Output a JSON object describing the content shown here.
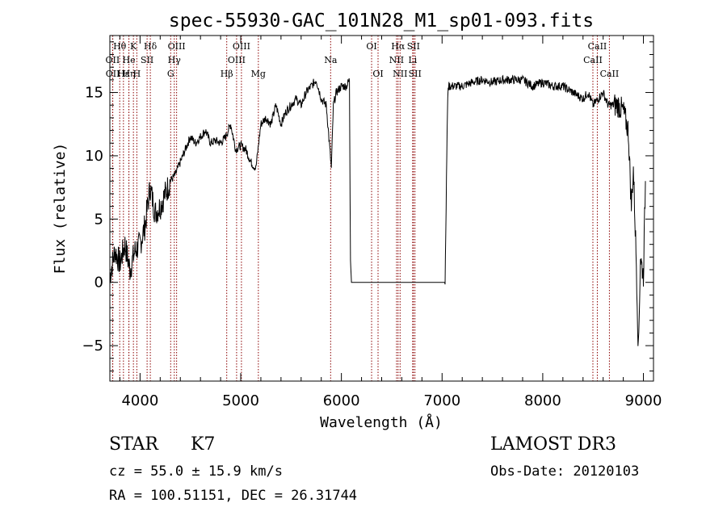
{
  "chart_data": {
    "type": "line",
    "title": "spec-55930-GAC_101N28_M1_sp01-093.fits",
    "xlabel": "Wavelength (Å)",
    "ylabel": "Flux (relative)",
    "xlim": [
      3700,
      9100
    ],
    "ylim": [
      -7.8,
      19.5
    ],
    "xticks": [
      4000,
      5000,
      6000,
      7000,
      8000,
      9000
    ],
    "yticks": [
      -5,
      0,
      5,
      10,
      15
    ],
    "series": [
      {
        "x": [
          3700,
          3750,
          3800,
          3850,
          3900,
          3950,
          4000,
          4050,
          4100,
          4150,
          4200,
          4250,
          4300,
          4350,
          4400,
          4450,
          4500,
          4550,
          4600,
          4650,
          4700,
          4750,
          4800,
          4850,
          4900,
          4950,
          5000,
          5050,
          5100,
          5150,
          5200,
          5250,
          5300,
          5350,
          5400,
          5450,
          5500,
          5550,
          5600,
          5650,
          5700,
          5750,
          5800,
          5850,
          5880,
          5900,
          5920,
          5950,
          6000,
          6050,
          6080,
          6090,
          6100,
          6150,
          6200,
          6300,
          6400,
          6500,
          6600,
          6700,
          6800,
          6900,
          7000,
          7030,
          7040,
          7050,
          7060,
          7100,
          7200,
          7300,
          7400,
          7500,
          7600,
          7700,
          7800,
          7900,
          8000,
          8100,
          8200,
          8300,
          8400,
          8450,
          8500,
          8550,
          8600,
          8650,
          8700,
          8750,
          8800,
          8850,
          8880,
          8900,
          8930,
          8950,
          8970,
          9000,
          9020
        ],
        "y": [
          0.5,
          2.5,
          1.5,
          3.0,
          1.0,
          2.5,
          3.0,
          4.5,
          7.5,
          5.5,
          6.0,
          7.0,
          8.0,
          8.5,
          9.5,
          10.5,
          11.5,
          11.0,
          11.5,
          12.0,
          11.0,
          11.2,
          11.0,
          11.5,
          12.5,
          10.5,
          10.8,
          10.5,
          9.5,
          9.0,
          12.5,
          13.0,
          12.5,
          14.0,
          12.5,
          13.5,
          14.0,
          14.5,
          14.0,
          15.0,
          15.5,
          16.0,
          14.5,
          14.0,
          11.0,
          9.0,
          14.0,
          15.0,
          15.5,
          15.5,
          16.0,
          2.0,
          0.0,
          0.0,
          0.0,
          0.0,
          0.0,
          0.0,
          0.0,
          0.0,
          0.0,
          0.0,
          0.0,
          0.0,
          6.0,
          12.0,
          15.5,
          15.5,
          15.5,
          15.8,
          16.0,
          15.8,
          16.0,
          16.0,
          16.0,
          15.5,
          15.8,
          15.5,
          15.5,
          15.0,
          14.5,
          15.0,
          14.0,
          14.5,
          15.0,
          14.0,
          14.0,
          14.0,
          13.5,
          12.0,
          6.0,
          9.0,
          1.5,
          -5.5,
          2.0,
          0.5,
          8.0
        ]
      }
    ],
    "lines": [
      {
        "name": "Hθ",
        "x": 3798,
        "row": 1
      },
      {
        "name": "K",
        "x": 3934,
        "row": 1
      },
      {
        "name": "Hδ",
        "x": 4102,
        "row": 1
      },
      {
        "name": "OIII",
        "x": 4363,
        "row": 1
      },
      {
        "name": "OIII",
        "x": 5007,
        "row": 1
      },
      {
        "name": "OI",
        "x": 6300,
        "row": 1
      },
      {
        "name": "Hα",
        "x": 6563,
        "row": 1
      },
      {
        "name": "SII",
        "x": 6716,
        "row": 1
      },
      {
        "name": "CaII",
        "x": 8542,
        "row": 1
      },
      {
        "name": "OII",
        "x": 3727,
        "row": 2
      },
      {
        "name": "He",
        "x": 3889,
        "row": 2
      },
      {
        "name": "SII",
        "x": 4070,
        "row": 2
      },
      {
        "name": "Hγ",
        "x": 4340,
        "row": 2
      },
      {
        "name": "OIII",
        "x": 4959,
        "row": 2
      },
      {
        "name": "Na",
        "x": 5893,
        "row": 2
      },
      {
        "name": "NII",
        "x": 6548,
        "row": 2
      },
      {
        "name": "Li",
        "x": 6708,
        "row": 2
      },
      {
        "name": "CaII",
        "x": 8498,
        "row": 2
      },
      {
        "name": "OII",
        "x": 3729,
        "row": 3
      },
      {
        "name": "Hε",
        "x": 3835,
        "row": 3
      },
      {
        "name": "Hη",
        "x": 3889,
        "row": 3
      },
      {
        "name": "H",
        "x": 3968,
        "row": 3
      },
      {
        "name": "G",
        "x": 4304,
        "row": 3
      },
      {
        "name": "Hβ",
        "x": 4861,
        "row": 3
      },
      {
        "name": "Mg",
        "x": 5175,
        "row": 3
      },
      {
        "name": "OI",
        "x": 6364,
        "row": 3
      },
      {
        "name": "NII",
        "x": 6583,
        "row": 3
      },
      {
        "name": "SII",
        "x": 6731,
        "row": 3
      },
      {
        "name": "CaII",
        "x": 8662,
        "row": 3
      }
    ],
    "line_color": "#8b0000",
    "data_color": "#000000"
  },
  "info": {
    "object_class": "STAR",
    "subclass": "K7",
    "survey": "LAMOST DR3",
    "cz": "cz = 55.0 ± 15.9 km/s",
    "obs_date": "Obs-Date: 20120103",
    "radec": "RA = 100.51151, DEC =  26.31744"
  }
}
